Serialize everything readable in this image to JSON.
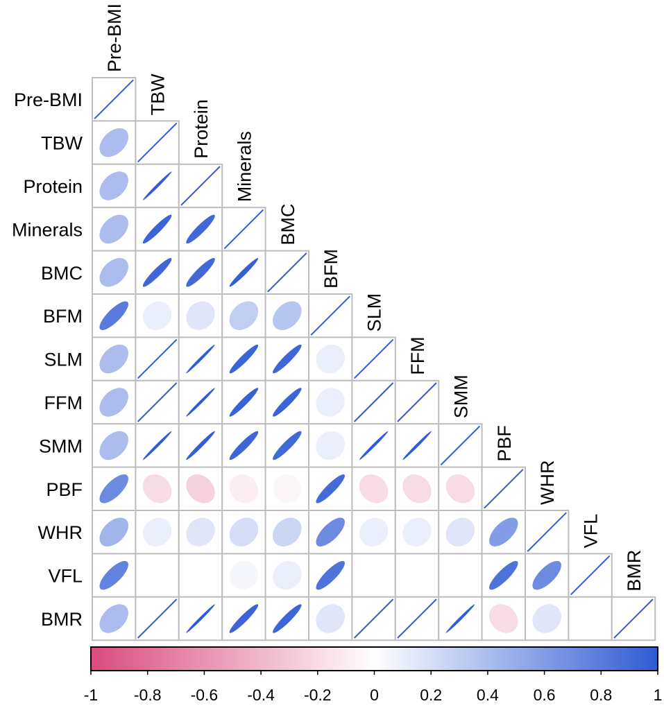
{
  "chart_data": {
    "type": "heatmap",
    "style": "lower-triangle ellipse correlation matrix",
    "variables": [
      "Pre-BMI",
      "TBW",
      "Protein",
      "Minerals",
      "BMC",
      "BFM",
      "SLM",
      "FFM",
      "SMM",
      "PBF",
      "WHR",
      "VFL",
      "BMR"
    ],
    "matrix": [
      [
        1.0
      ],
      [
        0.4,
        1.0
      ],
      [
        0.4,
        0.99,
        1.0
      ],
      [
        0.4,
        0.94,
        0.92,
        1.0
      ],
      [
        0.4,
        0.93,
        0.91,
        0.97,
        1.0
      ],
      [
        0.8,
        0.1,
        0.15,
        0.3,
        0.35,
        1.0
      ],
      [
        0.4,
        1.0,
        0.99,
        0.94,
        0.93,
        0.1,
        1.0
      ],
      [
        0.4,
        1.0,
        0.99,
        0.95,
        0.94,
        0.1,
        1.0,
        1.0
      ],
      [
        0.4,
        0.99,
        0.98,
        0.93,
        0.92,
        0.1,
        0.99,
        0.99,
        1.0
      ],
      [
        0.7,
        -0.2,
        -0.25,
        -0.1,
        -0.05,
        0.9,
        -0.2,
        -0.2,
        -0.2,
        1.0
      ],
      [
        0.45,
        0.1,
        0.15,
        0.2,
        0.25,
        0.7,
        0.1,
        0.1,
        0.15,
        0.6,
        1.0
      ],
      [
        0.75,
        0.0,
        0.0,
        0.05,
        0.1,
        0.85,
        0.0,
        0.0,
        0.0,
        0.85,
        0.7,
        1.0
      ],
      [
        0.4,
        1.0,
        0.99,
        0.94,
        0.93,
        0.15,
        1.0,
        1.0,
        0.99,
        -0.2,
        0.15,
        0.0,
        1.0
      ]
    ],
    "colorbar": {
      "range": [
        -1,
        1
      ],
      "ticks": [
        "-1",
        "-0.8",
        "-0.6",
        "-0.4",
        "-0.2",
        "0",
        "0.2",
        "0.4",
        "0.6",
        "0.8",
        "1"
      ],
      "colors": [
        "#d94b7e",
        "#ffffff",
        "#2f5bd3"
      ]
    },
    "title": "",
    "xlabel": "",
    "ylabel": ""
  }
}
